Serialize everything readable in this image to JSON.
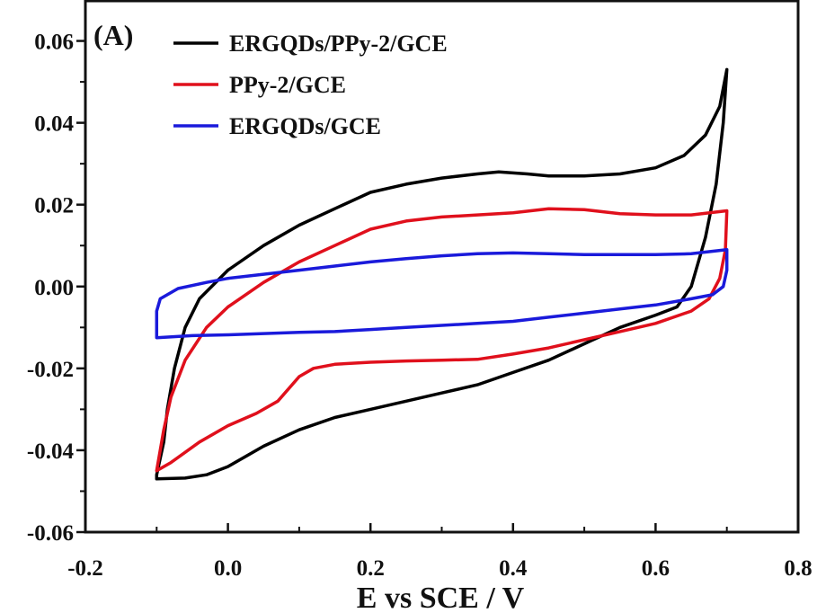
{
  "chart_data": {
    "type": "line",
    "panel_label": "(A)",
    "xlabel": "E vs SCE / V",
    "ylabel": "",
    "xlim": [
      -0.2,
      0.8
    ],
    "ylim": [
      -0.06,
      0.07
    ],
    "xticks": [
      -0.2,
      0.0,
      0.2,
      0.4,
      0.6,
      0.8
    ],
    "xtick_labels": [
      "-0.2",
      "0.0",
      "0.2",
      "0.4",
      "0.6",
      "0.8"
    ],
    "yticks": [
      -0.06,
      -0.04,
      -0.02,
      0.0,
      0.02,
      0.04,
      0.06
    ],
    "ytick_labels": [
      "-0.06",
      "-0.04",
      "-0.02",
      "0.00",
      "0.02",
      "0.04",
      "0.06"
    ],
    "legend_position": "top-left",
    "series": [
      {
        "name": "ERGQDs/PPy-2/GCE",
        "color": "#000000",
        "points": [
          [
            -0.1,
            -0.046
          ],
          [
            -0.09,
            -0.038
          ],
          [
            -0.085,
            -0.03
          ],
          [
            -0.075,
            -0.02
          ],
          [
            -0.06,
            -0.01
          ],
          [
            -0.04,
            -0.003
          ],
          [
            0.0,
            0.004
          ],
          [
            0.05,
            0.01
          ],
          [
            0.1,
            0.015
          ],
          [
            0.15,
            0.019
          ],
          [
            0.2,
            0.023
          ],
          [
            0.25,
            0.025
          ],
          [
            0.3,
            0.0265
          ],
          [
            0.35,
            0.0275
          ],
          [
            0.38,
            0.028
          ],
          [
            0.42,
            0.0275
          ],
          [
            0.45,
            0.027
          ],
          [
            0.5,
            0.027
          ],
          [
            0.55,
            0.0275
          ],
          [
            0.6,
            0.029
          ],
          [
            0.64,
            0.032
          ],
          [
            0.67,
            0.037
          ],
          [
            0.69,
            0.044
          ],
          [
            0.7,
            0.053
          ],
          [
            0.695,
            0.04
          ],
          [
            0.685,
            0.025
          ],
          [
            0.67,
            0.012
          ],
          [
            0.65,
            0.0
          ],
          [
            0.63,
            -0.005
          ],
          [
            0.6,
            -0.007
          ],
          [
            0.55,
            -0.01
          ],
          [
            0.5,
            -0.014
          ],
          [
            0.45,
            -0.018
          ],
          [
            0.4,
            -0.021
          ],
          [
            0.35,
            -0.024
          ],
          [
            0.3,
            -0.026
          ],
          [
            0.25,
            -0.028
          ],
          [
            0.2,
            -0.03
          ],
          [
            0.15,
            -0.032
          ],
          [
            0.1,
            -0.035
          ],
          [
            0.05,
            -0.039
          ],
          [
            0.0,
            -0.044
          ],
          [
            -0.03,
            -0.046
          ],
          [
            -0.06,
            -0.0468
          ],
          [
            -0.1,
            -0.047
          ]
        ]
      },
      {
        "name": "PPy-2/GCE",
        "color": "#e0101c",
        "points": [
          [
            -0.1,
            -0.045
          ],
          [
            -0.09,
            -0.035
          ],
          [
            -0.08,
            -0.027
          ],
          [
            -0.06,
            -0.018
          ],
          [
            -0.03,
            -0.01
          ],
          [
            0.0,
            -0.005
          ],
          [
            0.05,
            0.001
          ],
          [
            0.1,
            0.006
          ],
          [
            0.15,
            0.01
          ],
          [
            0.2,
            0.014
          ],
          [
            0.25,
            0.016
          ],
          [
            0.3,
            0.017
          ],
          [
            0.35,
            0.0175
          ],
          [
            0.4,
            0.018
          ],
          [
            0.45,
            0.019
          ],
          [
            0.5,
            0.0188
          ],
          [
            0.55,
            0.0178
          ],
          [
            0.6,
            0.0175
          ],
          [
            0.65,
            0.0175
          ],
          [
            0.7,
            0.0185
          ],
          [
            0.698,
            0.009
          ],
          [
            0.69,
            0.002
          ],
          [
            0.675,
            -0.003
          ],
          [
            0.65,
            -0.006
          ],
          [
            0.6,
            -0.009
          ],
          [
            0.55,
            -0.011
          ],
          [
            0.5,
            -0.013
          ],
          [
            0.45,
            -0.015
          ],
          [
            0.4,
            -0.0165
          ],
          [
            0.35,
            -0.0178
          ],
          [
            0.3,
            -0.018
          ],
          [
            0.25,
            -0.0182
          ],
          [
            0.2,
            -0.0185
          ],
          [
            0.15,
            -0.019
          ],
          [
            0.12,
            -0.02
          ],
          [
            0.1,
            -0.022
          ],
          [
            0.07,
            -0.028
          ],
          [
            0.04,
            -0.031
          ],
          [
            0.0,
            -0.034
          ],
          [
            -0.04,
            -0.038
          ],
          [
            -0.08,
            -0.043
          ],
          [
            -0.1,
            -0.045
          ]
        ]
      },
      {
        "name": "ERGQDs/GCE",
        "color": "#1a1adb",
        "points": [
          [
            -0.1,
            -0.0125
          ],
          [
            -0.1,
            -0.006
          ],
          [
            -0.095,
            -0.003
          ],
          [
            -0.07,
            -0.0005
          ],
          [
            -0.03,
            0.001
          ],
          [
            0.0,
            0.002
          ],
          [
            0.05,
            0.003
          ],
          [
            0.1,
            0.004
          ],
          [
            0.15,
            0.005
          ],
          [
            0.2,
            0.006
          ],
          [
            0.25,
            0.0068
          ],
          [
            0.3,
            0.0075
          ],
          [
            0.35,
            0.008
          ],
          [
            0.4,
            0.0082
          ],
          [
            0.45,
            0.008
          ],
          [
            0.5,
            0.0078
          ],
          [
            0.55,
            0.0078
          ],
          [
            0.6,
            0.0078
          ],
          [
            0.65,
            0.008
          ],
          [
            0.7,
            0.009
          ],
          [
            0.7,
            0.004
          ],
          [
            0.695,
            0.0
          ],
          [
            0.68,
            -0.002
          ],
          [
            0.65,
            -0.003
          ],
          [
            0.6,
            -0.0045
          ],
          [
            0.55,
            -0.0055
          ],
          [
            0.5,
            -0.0065
          ],
          [
            0.45,
            -0.0075
          ],
          [
            0.4,
            -0.0085
          ],
          [
            0.35,
            -0.009
          ],
          [
            0.3,
            -0.0095
          ],
          [
            0.25,
            -0.01
          ],
          [
            0.2,
            -0.0105
          ],
          [
            0.15,
            -0.011
          ],
          [
            0.1,
            -0.0112
          ],
          [
            0.05,
            -0.0115
          ],
          [
            0.0,
            -0.0118
          ],
          [
            -0.05,
            -0.012
          ],
          [
            -0.1,
            -0.0125
          ]
        ]
      }
    ]
  }
}
